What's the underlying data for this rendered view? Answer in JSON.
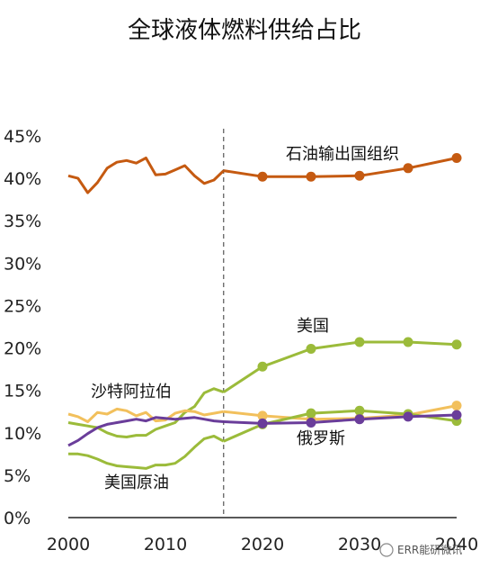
{
  "chart_data": {
    "type": "line",
    "title": "全球液体燃料供给占比",
    "xlabel": "",
    "ylabel": "",
    "xlim": [
      2000,
      2040
    ],
    "ylim": [
      0,
      45
    ],
    "x_ticks": [
      2000,
      2010,
      2020,
      2030,
      2040
    ],
    "x_tick_labels": [
      "2000",
      "2010",
      "2020",
      "2030",
      "2040"
    ],
    "y_ticks": [
      0,
      5,
      10,
      15,
      20,
      25,
      30,
      35,
      40,
      45
    ],
    "y_tick_labels": [
      "0%",
      "5%",
      "10%",
      "15%",
      "20%",
      "25%",
      "30%",
      "35%",
      "40%",
      "45%"
    ],
    "grid": false,
    "legend": "inline labels",
    "divider_x": 2016,
    "series": [
      {
        "name": "石油输出国组织",
        "color": "#c55a11",
        "history": [
          [
            2000,
            40.3
          ],
          [
            2001,
            40.0
          ],
          [
            2002,
            38.3
          ],
          [
            2003,
            39.5
          ],
          [
            2004,
            41.2
          ],
          [
            2005,
            41.9
          ],
          [
            2006,
            42.1
          ],
          [
            2007,
            41.8
          ],
          [
            2008,
            42.4
          ],
          [
            2009,
            40.4
          ],
          [
            2010,
            40.5
          ],
          [
            2011,
            41.0
          ],
          [
            2012,
            41.5
          ],
          [
            2013,
            40.3
          ],
          [
            2014,
            39.4
          ],
          [
            2015,
            39.8
          ],
          [
            2016,
            40.9
          ]
        ],
        "projection": [
          [
            2016,
            40.9
          ],
          [
            2020,
            40.2
          ],
          [
            2025,
            40.2
          ],
          [
            2030,
            40.3
          ],
          [
            2035,
            41.2
          ],
          [
            2040,
            42.4
          ]
        ]
      },
      {
        "name": "美国",
        "color": "#9bbb3a",
        "history": [
          [
            2000,
            11.2
          ],
          [
            2001,
            11.0
          ],
          [
            2002,
            10.8
          ],
          [
            2003,
            10.6
          ],
          [
            2004,
            10.0
          ],
          [
            2005,
            9.6
          ],
          [
            2006,
            9.5
          ],
          [
            2007,
            9.7
          ],
          [
            2008,
            9.7
          ],
          [
            2009,
            10.4
          ],
          [
            2010,
            10.8
          ],
          [
            2011,
            11.2
          ],
          [
            2012,
            12.4
          ],
          [
            2013,
            13.1
          ],
          [
            2014,
            14.7
          ],
          [
            2015,
            15.2
          ],
          [
            2016,
            14.8
          ]
        ],
        "projection": [
          [
            2016,
            14.8
          ],
          [
            2020,
            17.8
          ],
          [
            2025,
            19.9
          ],
          [
            2030,
            20.7
          ],
          [
            2035,
            20.7
          ],
          [
            2040,
            20.4
          ]
        ]
      },
      {
        "name": "沙特阿拉伯",
        "color": "#f2c05c",
        "history": [
          [
            2000,
            12.2
          ],
          [
            2001,
            11.9
          ],
          [
            2002,
            11.3
          ],
          [
            2003,
            12.4
          ],
          [
            2004,
            12.2
          ],
          [
            2005,
            12.8
          ],
          [
            2006,
            12.6
          ],
          [
            2007,
            12.0
          ],
          [
            2008,
            12.4
          ],
          [
            2009,
            11.4
          ],
          [
            2010,
            11.5
          ],
          [
            2011,
            12.3
          ],
          [
            2012,
            12.6
          ],
          [
            2013,
            12.5
          ],
          [
            2014,
            12.1
          ],
          [
            2015,
            12.3
          ],
          [
            2016,
            12.5
          ]
        ],
        "projection": [
          [
            2016,
            12.5
          ],
          [
            2020,
            12.0
          ],
          [
            2025,
            11.6
          ],
          [
            2030,
            11.7
          ],
          [
            2035,
            12.1
          ],
          [
            2040,
            13.2
          ]
        ]
      },
      {
        "name": "美国原油",
        "color": "#9bbb3a",
        "history": [
          [
            2000,
            7.5
          ],
          [
            2001,
            7.5
          ],
          [
            2002,
            7.3
          ],
          [
            2003,
            6.9
          ],
          [
            2004,
            6.4
          ],
          [
            2005,
            6.1
          ],
          [
            2006,
            6.0
          ],
          [
            2007,
            5.9
          ],
          [
            2008,
            5.8
          ],
          [
            2009,
            6.2
          ],
          [
            2010,
            6.2
          ],
          [
            2011,
            6.4
          ],
          [
            2012,
            7.2
          ],
          [
            2013,
            8.3
          ],
          [
            2014,
            9.3
          ],
          [
            2015,
            9.6
          ],
          [
            2016,
            9.0
          ]
        ],
        "projection": [
          [
            2016,
            9.0
          ],
          [
            2020,
            11.0
          ],
          [
            2025,
            12.3
          ],
          [
            2030,
            12.6
          ],
          [
            2035,
            12.2
          ],
          [
            2040,
            11.4
          ]
        ]
      },
      {
        "name": "俄罗斯",
        "color": "#6a3d9a",
        "history": [
          [
            2000,
            8.5
          ],
          [
            2001,
            9.1
          ],
          [
            2002,
            9.9
          ],
          [
            2003,
            10.6
          ],
          [
            2004,
            11.0
          ],
          [
            2005,
            11.2
          ],
          [
            2006,
            11.4
          ],
          [
            2007,
            11.6
          ],
          [
            2008,
            11.4
          ],
          [
            2009,
            11.8
          ],
          [
            2010,
            11.7
          ],
          [
            2011,
            11.6
          ],
          [
            2012,
            11.7
          ],
          [
            2013,
            11.8
          ],
          [
            2014,
            11.6
          ],
          [
            2015,
            11.4
          ],
          [
            2016,
            11.3
          ]
        ],
        "projection": [
          [
            2016,
            11.3
          ],
          [
            2020,
            11.1
          ],
          [
            2025,
            11.2
          ],
          [
            2030,
            11.6
          ],
          [
            2035,
            11.9
          ],
          [
            2040,
            12.1
          ]
        ]
      }
    ],
    "watermark": "ERR能研微讯"
  }
}
